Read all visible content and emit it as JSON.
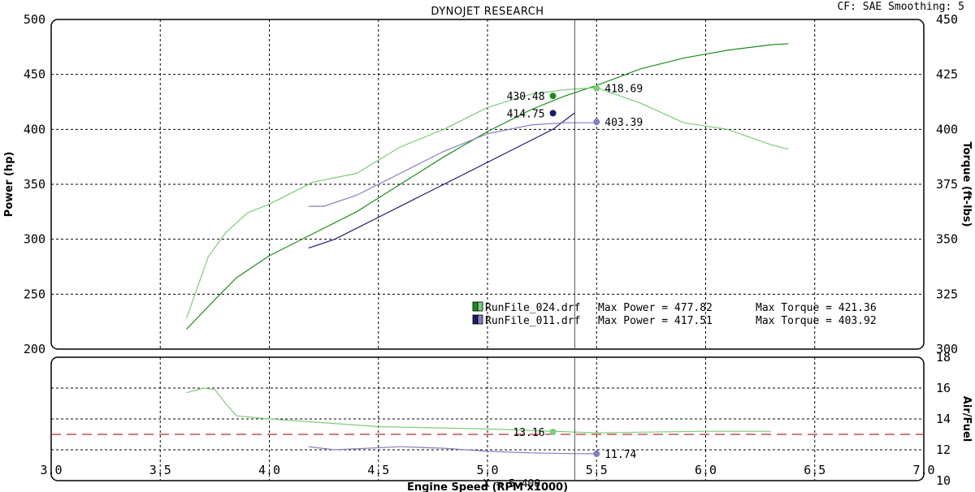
{
  "header": {
    "title": "DYNOJET RESEARCH",
    "correction": "CF: SAE  Smoothing: 5"
  },
  "chart_data": [
    {
      "type": "line",
      "panel": "power-torque",
      "x_unit": "RPM x 1000",
      "xlim": [
        3.0,
        7.0
      ],
      "ylim_left": [
        200,
        500
      ],
      "ylim_right": [
        300,
        450
      ],
      "ylabel_left": "Power (hp)",
      "ylabel_right": "Torque (ft-lbs)",
      "x_ticks": [
        "3.0",
        "3.5",
        "4.0",
        "4.5",
        "5.0",
        "5.5",
        "6.0",
        "6.5",
        "7.0"
      ],
      "y_ticks_left": [
        "200",
        "250",
        "300",
        "350",
        "400",
        "450",
        "500"
      ],
      "y_ticks_right": [
        "300",
        "325",
        "350",
        "375",
        "400",
        "425",
        "450"
      ],
      "grid": true,
      "cursor_x": 5.4,
      "cursor_label": "X = 5.400",
      "series": [
        {
          "name": "RunFile_024.drf",
          "measure": "power",
          "axis": "left",
          "color": "#1f8c1f",
          "x": [
            3.62,
            3.75,
            3.85,
            4.0,
            4.2,
            4.4,
            4.6,
            4.8,
            5.0,
            5.2,
            5.35,
            5.5,
            5.7,
            5.9,
            6.1,
            6.3,
            6.38
          ],
          "y": [
            218,
            245,
            265,
            285,
            305,
            325,
            350,
            375,
            398,
            418,
            430,
            440,
            455,
            465,
            472,
            477,
            478
          ]
        },
        {
          "name": "RunFile_024.drf",
          "measure": "torque",
          "axis": "right",
          "color": "#7ccc7c",
          "x": [
            3.62,
            3.72,
            3.8,
            3.9,
            4.0,
            4.2,
            4.4,
            4.6,
            4.8,
            5.0,
            5.2,
            5.35,
            5.5,
            5.7,
            5.9,
            6.1,
            6.3,
            6.38
          ],
          "y": [
            314,
            342,
            353,
            362,
            366,
            376,
            380,
            392,
            400,
            410,
            416,
            418,
            419,
            412,
            403,
            400,
            393,
            391
          ]
        },
        {
          "name": "RunFile_011.drf",
          "measure": "power",
          "axis": "left",
          "color": "#1a1a6e",
          "x": [
            4.18,
            4.3,
            4.5,
            4.7,
            4.9,
            5.1,
            5.3,
            5.4
          ],
          "y": [
            292,
            300,
            320,
            340,
            360,
            380,
            400,
            415
          ]
        },
        {
          "name": "RunFile_011.drf",
          "measure": "torque",
          "axis": "right",
          "color": "#8080c0",
          "x": [
            4.18,
            4.25,
            4.4,
            4.6,
            4.8,
            5.0,
            5.2,
            5.35,
            5.5
          ],
          "y": [
            365,
            365,
            370,
            380,
            390,
            398,
            402,
            403,
            403
          ]
        }
      ],
      "markers": [
        {
          "label": "430.48",
          "x": 5.3,
          "value": 430.48,
          "axis": "left",
          "color": "#1f8c1f",
          "side": "left"
        },
        {
          "label": "418.69",
          "x": 5.5,
          "value": 418.69,
          "axis": "right",
          "color": "#7ccc7c",
          "side": "right"
        },
        {
          "label": "414.75",
          "x": 5.3,
          "value": 414.75,
          "axis": "left",
          "color": "#1a1a6e",
          "side": "left"
        },
        {
          "label": "403.39",
          "x": 5.5,
          "value": 403.39,
          "axis": "right",
          "color": "#8080c0",
          "side": "right"
        }
      ],
      "legend": {
        "placement": "bottom-right",
        "rows": [
          {
            "file": "RunFile_024.drf",
            "max_power": "Max Power = 477.82",
            "max_torque": "Max Torque = 421.36",
            "color_a": "#1f8c1f",
            "color_b": "#7ccc7c"
          },
          {
            "file": "RunFile_011.drf",
            "max_power": "Max Power = 417.51",
            "max_torque": "Max Torque = 403.92",
            "color_a": "#1a1a6e",
            "color_b": "#8080c0"
          }
        ]
      }
    },
    {
      "type": "line",
      "panel": "air-fuel",
      "xlim": [
        3.0,
        7.0
      ],
      "ylim_right": [
        10,
        18
      ],
      "ylabel_right": "Air/Fuel",
      "xlabel": "Engine Speed (RPM x1000)",
      "y_ticks_right": [
        "10",
        "12",
        "14",
        "16",
        "18"
      ],
      "reference_value": 13.0,
      "grid": true,
      "series": [
        {
          "name": "RunFile_024.drf",
          "color": "#7ccc7c",
          "x": [
            3.62,
            3.7,
            3.75,
            3.8,
            3.85,
            4.0,
            4.5,
            5.0,
            5.5,
            6.0,
            6.3
          ],
          "y": [
            15.7,
            16.0,
            15.9,
            15.0,
            14.2,
            14.0,
            13.5,
            13.35,
            13.1,
            13.2,
            13.2
          ]
        },
        {
          "name": "RunFile_011.drf",
          "color": "#8080c0",
          "x": [
            4.18,
            4.3,
            4.6,
            4.8,
            5.0,
            5.2,
            5.4,
            5.5
          ],
          "y": [
            12.2,
            12.0,
            12.2,
            12.1,
            11.9,
            11.8,
            11.75,
            11.74
          ]
        }
      ],
      "markers": [
        {
          "label": "13.16",
          "x": 5.3,
          "value": 13.16,
          "color": "#7ccc7c",
          "side": "left"
        },
        {
          "label": "11.74",
          "x": 5.5,
          "value": 11.74,
          "color": "#8080c0",
          "side": "right"
        }
      ]
    }
  ]
}
